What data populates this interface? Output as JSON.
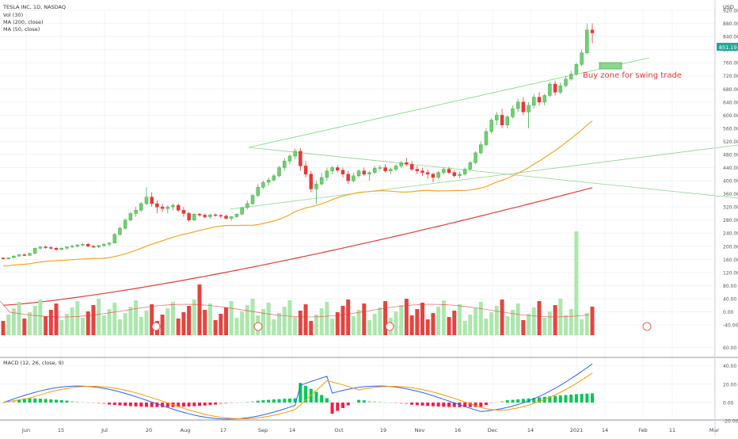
{
  "legend": {
    "symbol": "TESLA INC, 1D, NASDAQ",
    "vol": "Vol (30)",
    "ma200": "MA (200, close)",
    "ma50": "MA (50, close)",
    "macd": "MACD (12, 26, close, 9)"
  },
  "currency": "USD",
  "price_badge": "851.19",
  "annotation": "Buy zone for swing trade",
  "colors": {
    "up": "#7fd87f",
    "down": "#e53935",
    "ma50": "#f5a623",
    "ma200": "#e53935",
    "trend": "#7bd97b",
    "macd": "#2962ff",
    "signal": "#ff9800",
    "badge": "#26a69a"
  },
  "chart_data": {
    "type": "candlestick",
    "x_ticks": [
      "Jun",
      "15",
      "Jul",
      "20",
      "Aug",
      "17",
      "Sep",
      "14",
      "Oct",
      "19",
      "Nov",
      "16",
      "Dec",
      "14",
      "2021",
      "14",
      "Feb",
      "11",
      "Mar"
    ],
    "price_ticks": [
      "920.00",
      "880.00",
      "840.00",
      "800.00",
      "760.00",
      "720.00",
      "680.00",
      "640.00",
      "600.00",
      "560.00",
      "520.00",
      "480.00",
      "440.00",
      "400.00",
      "360.00",
      "320.00",
      "280.00",
      "240.00",
      "200.00",
      "160.00",
      "120.00",
      "80.00",
      "40.00",
      "0.00",
      "-40.00"
    ],
    "macd_ticks": [
      "60.00",
      "40.00",
      "20.00",
      "0.00",
      "-20.00"
    ],
    "ohlc": [
      [
        164,
        166,
        160,
        162
      ],
      [
        162,
        166,
        160,
        165
      ],
      [
        165,
        172,
        164,
        170
      ],
      [
        170,
        176,
        168,
        174
      ],
      [
        174,
        178,
        170,
        172
      ],
      [
        172,
        180,
        171,
        178
      ],
      [
        178,
        196,
        176,
        194
      ],
      [
        194,
        200,
        190,
        198
      ],
      [
        198,
        202,
        192,
        196
      ],
      [
        196,
        200,
        190,
        194
      ],
      [
        194,
        198,
        186,
        190
      ],
      [
        190,
        196,
        188,
        194
      ],
      [
        194,
        200,
        190,
        198
      ],
      [
        198,
        204,
        194,
        200
      ],
      [
        200,
        206,
        196,
        204
      ],
      [
        204,
        210,
        200,
        206
      ],
      [
        206,
        210,
        198,
        200
      ],
      [
        200,
        204,
        194,
        198
      ],
      [
        198,
        204,
        194,
        202
      ],
      [
        202,
        208,
        198,
        206
      ],
      [
        206,
        212,
        200,
        210
      ],
      [
        210,
        240,
        208,
        236
      ],
      [
        236,
        260,
        232,
        255
      ],
      [
        255,
        285,
        250,
        280
      ],
      [
        280,
        305,
        276,
        300
      ],
      [
        300,
        320,
        290,
        310
      ],
      [
        310,
        335,
        305,
        330
      ],
      [
        330,
        380,
        325,
        350
      ],
      [
        350,
        365,
        320,
        330
      ],
      [
        330,
        340,
        300,
        320
      ],
      [
        320,
        330,
        305,
        315
      ],
      [
        315,
        325,
        300,
        320
      ],
      [
        320,
        330,
        310,
        325
      ],
      [
        325,
        330,
        305,
        310
      ],
      [
        310,
        320,
        290,
        300
      ],
      [
        300,
        305,
        275,
        280
      ],
      [
        280,
        300,
        278,
        298
      ],
      [
        298,
        302,
        290,
        295
      ],
      [
        295,
        300,
        285,
        290
      ],
      [
        290,
        298,
        284,
        296
      ],
      [
        296,
        300,
        290,
        294
      ],
      [
        294,
        298,
        286,
        292
      ],
      [
        292,
        296,
        282,
        285
      ],
      [
        285,
        292,
        278,
        290
      ],
      [
        290,
        300,
        288,
        298
      ],
      [
        298,
        320,
        295,
        318
      ],
      [
        318,
        340,
        312,
        330
      ],
      [
        330,
        360,
        325,
        355
      ],
      [
        355,
        390,
        350,
        380
      ],
      [
        380,
        400,
        375,
        395
      ],
      [
        395,
        410,
        385,
        402
      ],
      [
        402,
        420,
        398,
        415
      ],
      [
        415,
        445,
        410,
        440
      ],
      [
        440,
        470,
        430,
        460
      ],
      [
        460,
        480,
        450,
        475
      ],
      [
        475,
        498,
        465,
        490
      ],
      [
        490,
        500,
        430,
        445
      ],
      [
        445,
        460,
        410,
        420
      ],
      [
        420,
        430,
        365,
        375
      ],
      [
        375,
        400,
        330,
        390
      ],
      [
        390,
        425,
        385,
        410
      ],
      [
        410,
        440,
        400,
        430
      ],
      [
        430,
        445,
        420,
        440
      ],
      [
        440,
        448,
        425,
        432
      ],
      [
        432,
        440,
        410,
        420
      ],
      [
        420,
        430,
        390,
        400
      ],
      [
        400,
        425,
        395,
        415
      ],
      [
        415,
        435,
        410,
        430
      ],
      [
        430,
        440,
        415,
        420
      ],
      [
        420,
        430,
        400,
        425
      ],
      [
        425,
        445,
        420,
        438
      ],
      [
        438,
        448,
        430,
        440
      ],
      [
        440,
        450,
        425,
        430
      ],
      [
        430,
        440,
        420,
        435
      ],
      [
        435,
        450,
        428,
        445
      ],
      [
        445,
        460,
        438,
        455
      ],
      [
        455,
        470,
        445,
        450
      ],
      [
        450,
        460,
        430,
        435
      ],
      [
        435,
        445,
        420,
        430
      ],
      [
        430,
        440,
        415,
        425
      ],
      [
        425,
        435,
        405,
        420
      ],
      [
        420,
        425,
        395,
        410
      ],
      [
        410,
        430,
        405,
        425
      ],
      [
        425,
        440,
        418,
        435
      ],
      [
        435,
        442,
        420,
        425
      ],
      [
        425,
        432,
        410,
        415
      ],
      [
        415,
        428,
        408,
        420
      ],
      [
        420,
        440,
        415,
        435
      ],
      [
        435,
        460,
        430,
        455
      ],
      [
        455,
        490,
        450,
        485
      ],
      [
        485,
        520,
        480,
        510
      ],
      [
        510,
        560,
        505,
        550
      ],
      [
        550,
        590,
        545,
        585
      ],
      [
        585,
        610,
        570,
        600
      ],
      [
        600,
        620,
        560,
        570
      ],
      [
        570,
        600,
        560,
        595
      ],
      [
        595,
        630,
        590,
        620
      ],
      [
        620,
        650,
        610,
        640
      ],
      [
        640,
        655,
        600,
        610
      ],
      [
        610,
        640,
        560,
        630
      ],
      [
        630,
        665,
        620,
        655
      ],
      [
        655,
        670,
        630,
        640
      ],
      [
        640,
        665,
        630,
        660
      ],
      [
        660,
        700,
        655,
        695
      ],
      [
        695,
        705,
        660,
        670
      ],
      [
        670,
        700,
        665,
        690
      ],
      [
        690,
        720,
        685,
        710
      ],
      [
        710,
        735,
        705,
        725
      ],
      [
        725,
        760,
        720,
        755
      ],
      [
        755,
        800,
        750,
        790
      ],
      [
        790,
        880,
        785,
        860
      ],
      [
        860,
        880,
        820,
        851
      ]
    ]
  }
}
